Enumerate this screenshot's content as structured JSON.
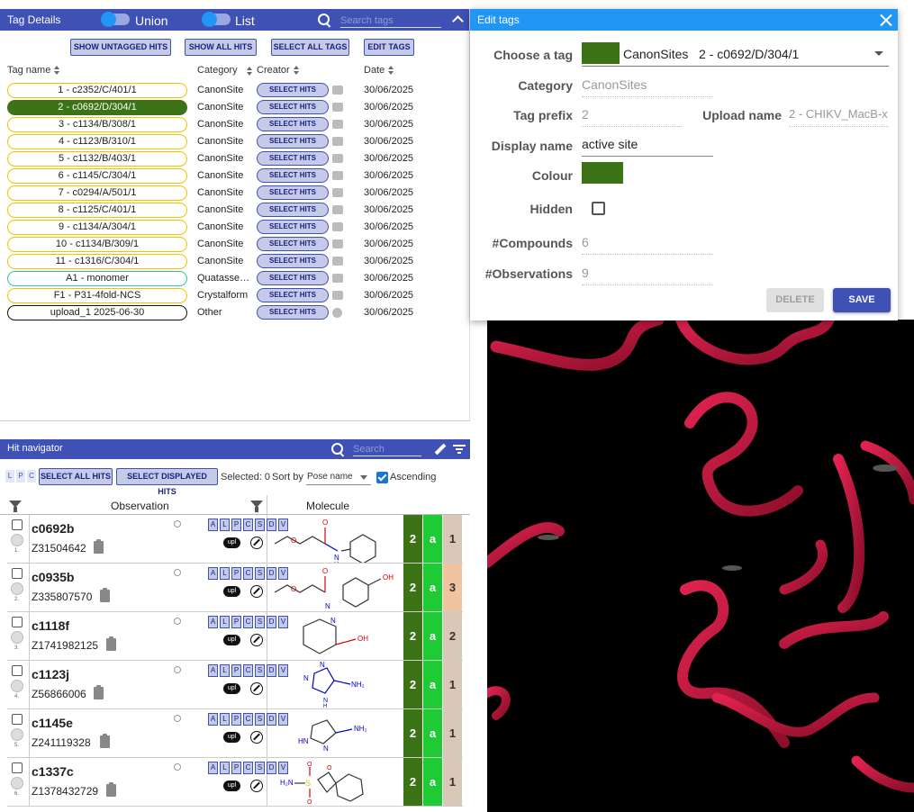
{
  "tag_details": {
    "title": "Tag Details",
    "union_label": "Union",
    "list_label": "List",
    "search_placeholder": "Search tags",
    "buttons": {
      "show_untagged": "SHOW UNTAGGED HITS",
      "show_all": "SHOW ALL HITS",
      "select_all_tags": "SELECT ALL TAGS",
      "edit_tags": "EDIT TAGS"
    },
    "columns": {
      "tag_name": "Tag name",
      "category": "Category",
      "creator": "Creator",
      "date": "Date"
    },
    "select_hits_label": "SELECT HITS",
    "tags": [
      {
        "name": "1 - c2352/C/401/1",
        "category": "CanonSite",
        "date": "30/06/2025"
      },
      {
        "name": "2 - c0692/D/304/1",
        "category": "CanonSite",
        "date": "30/06/2025"
      },
      {
        "name": "3 - c1134/B/308/1",
        "category": "CanonSite",
        "date": "30/06/2025"
      },
      {
        "name": "4 - c1123/B/310/1",
        "category": "CanonSite",
        "date": "30/06/2025"
      },
      {
        "name": "5 - c1132/B/403/1",
        "category": "CanonSite",
        "date": "30/06/2025"
      },
      {
        "name": "6 - c1145/C/304/1",
        "category": "CanonSite",
        "date": "30/06/2025"
      },
      {
        "name": "7 - c0294/A/501/1",
        "category": "CanonSite",
        "date": "30/06/2025"
      },
      {
        "name": "8 - c1125/C/401/1",
        "category": "CanonSite",
        "date": "30/06/2025"
      },
      {
        "name": "9 - c1134/A/304/1",
        "category": "CanonSite",
        "date": "30/06/2025"
      },
      {
        "name": "10 - c1134/B/309/1",
        "category": "CanonSite",
        "date": "30/06/2025"
      },
      {
        "name": "11 - c1316/C/304/1",
        "category": "CanonSite",
        "date": "30/06/2025"
      },
      {
        "name": "A1 - monomer",
        "category": "Quatassembly",
        "date": "30/06/2025"
      },
      {
        "name": "F1 - P31-4fold-NCS",
        "category": "Crystalform",
        "date": "30/06/2025"
      },
      {
        "name": "upload_1 2025-06-30",
        "category": "Other",
        "date": "30/06/2025"
      }
    ]
  },
  "hit_navigator": {
    "title": "Hit navigator",
    "search_placeholder": "Search",
    "lpc": [
      "L",
      "P",
      "C"
    ],
    "select_all_hits": "SELECT ALL HITS",
    "select_displayed_hits": "SELECT DISPLAYED HITS",
    "selected_text": "Selected: 0",
    "sort_by_label": "Sort by",
    "sort_value": "Pose name",
    "ascending_label": "Ascending",
    "col_observation": "Observation",
    "col_molecule": "Molecule",
    "flags": [
      "A",
      "L",
      "P",
      "C",
      "S",
      "D",
      "V"
    ],
    "upl_label": "upl",
    "rows": [
      {
        "name": "c0692b",
        "code": "Z31504642",
        "num": "1.",
        "score1": "2",
        "score2": "a",
        "score3": "1"
      },
      {
        "name": "c0935b",
        "code": "Z335807570",
        "num": "2.",
        "score1": "2",
        "score2": "a",
        "score3": "3"
      },
      {
        "name": "c1118f",
        "code": "Z1741982125",
        "num": "3.",
        "score1": "2",
        "score2": "a",
        "score3": "2"
      },
      {
        "name": "c1123j",
        "code": "Z56866006",
        "num": "4.",
        "score1": "2",
        "score2": "a",
        "score3": "1"
      },
      {
        "name": "c1145e",
        "code": "Z241119328",
        "num": "5.",
        "score1": "2",
        "score2": "a",
        "score3": "1"
      },
      {
        "name": "c1337c",
        "code": "Z1378432729",
        "num": "6.",
        "score1": "2",
        "score2": "a",
        "score3": "1"
      }
    ]
  },
  "edit_tags": {
    "title": "Edit tags",
    "choose_label": "Choose a tag",
    "choose_value": "CanonSites   2 - c0692/D/304/1",
    "category_label": "Category",
    "category_value": "CanonSites",
    "prefix_label": "Tag prefix",
    "prefix_value": "2",
    "upload_label": "Upload name",
    "upload_value": "2 - CHIKV_MacB-x",
    "display_label": "Display name",
    "display_value": "active site",
    "colour_label": "Colour",
    "hidden_label": "Hidden",
    "compounds_label": "#Compounds",
    "compounds_value": "6",
    "observations_label": "#Observations",
    "observations_value": "9",
    "delete_label": "DELETE",
    "save_label": "SAVE"
  },
  "colors": {
    "primary": "#3f51b5",
    "dialog_header": "#2196f3",
    "tag_green": "#3d7317",
    "score_dark_green": "#3d7317",
    "score_bright_green": "#1ecb35",
    "viewer_bg": "#000000",
    "ribbon": "#c8173f"
  }
}
